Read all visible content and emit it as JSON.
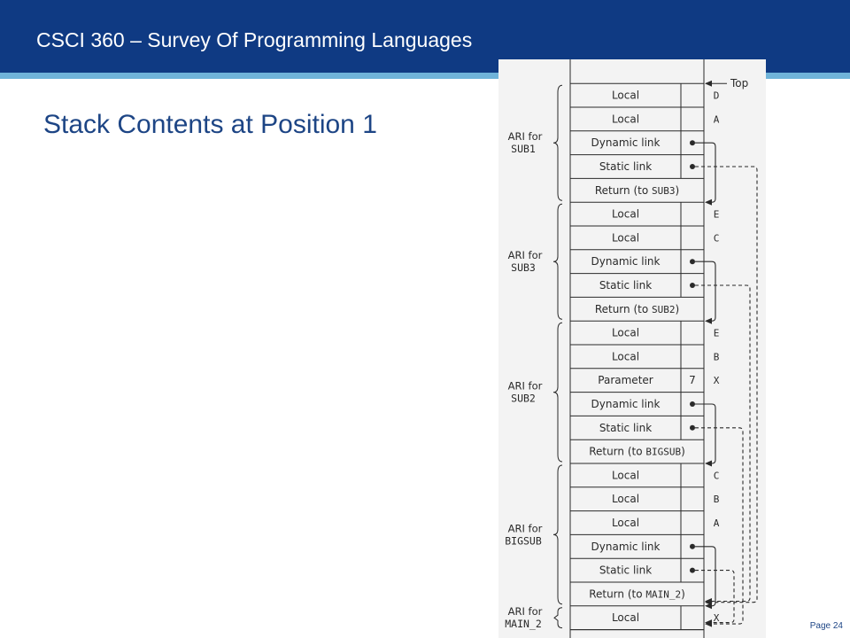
{
  "header": {
    "title": "CSCI 360 – Survey Of Programming Languages",
    "bar_color": "#0f3a83",
    "stripe_color": "#6fb3d9"
  },
  "slide": {
    "title": "Stack Contents at Position 1",
    "page_label": "Page 24"
  },
  "figure": {
    "top_label": "Top",
    "records": [
      {
        "ari_label": "ARI for",
        "ari_name": "SUB1",
        "cells": [
          {
            "label": "Local",
            "value": "",
            "name": "D"
          },
          {
            "label": "Local",
            "value": "",
            "name": "A"
          },
          {
            "label": "Dynamic link",
            "value": "•",
            "name": ""
          },
          {
            "label": "Static link",
            "value": "•",
            "name": ""
          },
          {
            "label": "Return (to ",
            "target": "SUB3",
            "label_end": ")",
            "value": "",
            "name": ""
          }
        ]
      },
      {
        "ari_label": "ARI for",
        "ari_name": "SUB3",
        "cells": [
          {
            "label": "Local",
            "value": "",
            "name": "E"
          },
          {
            "label": "Local",
            "value": "",
            "name": "C"
          },
          {
            "label": "Dynamic link",
            "value": "•",
            "name": ""
          },
          {
            "label": "Static link",
            "value": "•",
            "name": ""
          },
          {
            "label": "Return (to ",
            "target": "SUB2",
            "label_end": ")",
            "value": "",
            "name": ""
          }
        ]
      },
      {
        "ari_label": "ARI for",
        "ari_name": "SUB2",
        "cells": [
          {
            "label": "Local",
            "value": "",
            "name": "E"
          },
          {
            "label": "Local",
            "value": "",
            "name": "B"
          },
          {
            "label": "Parameter",
            "value": "7",
            "name": "X"
          },
          {
            "label": "Dynamic link",
            "value": "•",
            "name": ""
          },
          {
            "label": "Static link",
            "value": "•",
            "name": ""
          },
          {
            "label": "Return (to ",
            "target": "BIGSUB",
            "label_end": ")",
            "value": "",
            "name": ""
          }
        ]
      },
      {
        "ari_label": "ARI for",
        "ari_name": "BIGSUB",
        "cells": [
          {
            "label": "Local",
            "value": "",
            "name": "C"
          },
          {
            "label": "Local",
            "value": "",
            "name": "B"
          },
          {
            "label": "Local",
            "value": "",
            "name": "A"
          },
          {
            "label": "Dynamic link",
            "value": "•",
            "name": ""
          },
          {
            "label": "Static link",
            "value": "•",
            "name": ""
          },
          {
            "label": "Return (to ",
            "target": "MAIN_2",
            "label_end": ")",
            "value": "",
            "name": ""
          }
        ]
      },
      {
        "ari_label": "ARI for",
        "ari_name": "MAIN_2",
        "cells": [
          {
            "label": "Local",
            "value": "",
            "name": "X"
          }
        ]
      }
    ]
  }
}
